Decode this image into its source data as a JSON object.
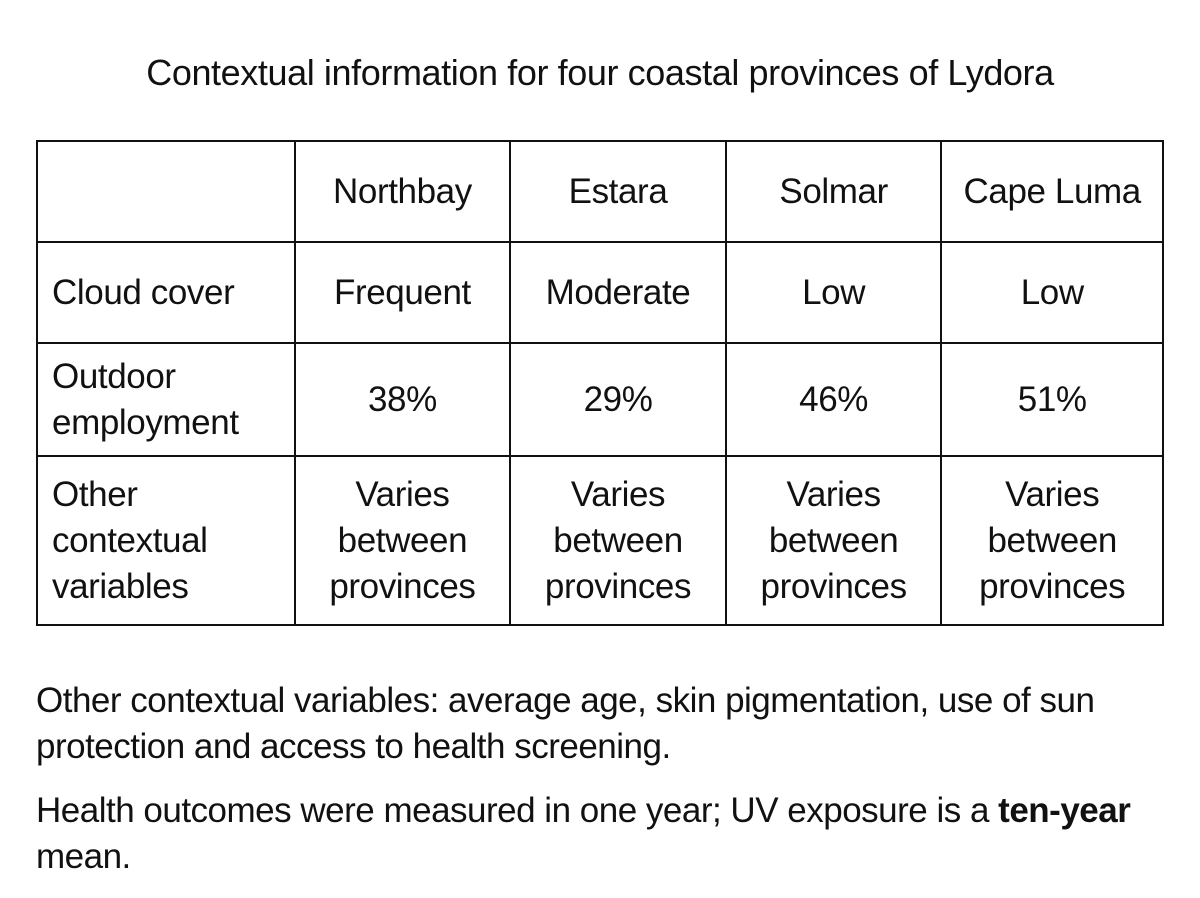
{
  "title": "Contextual information for four coastal provinces of Lydora",
  "table": {
    "header": [
      "Northbay",
      "Estara",
      "Solmar",
      "Cape Luma"
    ],
    "rows": [
      [
        "Cloud cover",
        "Frequent",
        "Moderate",
        "Low",
        "Low"
      ],
      [
        "Outdoor employment",
        "38%",
        "29%",
        "46%",
        "51%"
      ],
      [
        "Other contextual variables",
        "Varies between provinces",
        "Varies between provinces",
        "Varies between provinces",
        "Varies between provinces"
      ]
    ]
  },
  "notes": [
    {
      "text": "Other contextual variables: average age, skin pigmentation, use of sun protection and access to health screening."
    },
    {
      "parts": [
        "Health outcomes were measured in one year; UV exposure is a ",
        "ten-year",
        " mean."
      ]
    }
  ]
}
